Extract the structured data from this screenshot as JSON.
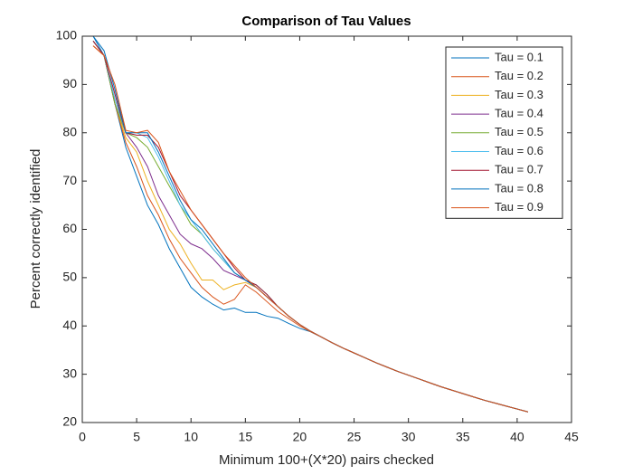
{
  "chart_data": {
    "type": "line",
    "title": "Comparison of Tau Values",
    "x_label": "Minimum 100+(X*20) pairs checked",
    "y_label": "Percent correctly identified",
    "x": [
      1,
      2,
      3,
      4,
      5,
      6,
      7,
      8,
      9,
      10,
      11,
      12,
      13,
      14,
      15,
      16,
      17,
      18,
      19,
      20,
      21,
      22,
      23,
      24,
      25,
      26,
      27,
      28,
      29,
      30,
      31,
      32,
      33,
      34,
      35,
      36,
      37,
      38,
      39,
      40,
      41
    ],
    "xlim": [
      0,
      45
    ],
    "xticks": [
      0,
      5,
      10,
      15,
      20,
      25,
      30,
      35,
      40,
      45
    ],
    "ylim": [
      20,
      100
    ],
    "yticks": [
      20,
      30,
      40,
      50,
      60,
      70,
      80,
      90,
      100
    ],
    "legend": "northeast",
    "grid": false,
    "series": [
      {
        "name": "Tau = 0.1",
        "color": "#0072BD",
        "values": [
          100,
          96,
          86,
          77,
          71,
          65,
          61,
          56,
          52,
          48,
          46,
          44.5,
          43.3,
          43.7,
          42.8,
          42.8,
          42,
          41.6,
          40.5,
          39.5,
          38.8,
          37.7,
          36.5,
          35.4,
          34.4,
          33.4,
          32.4,
          31.5,
          30.6,
          29.8,
          29,
          28.2,
          27.4,
          26.7,
          26,
          25.3,
          24.6,
          24,
          23.4,
          22.8,
          22.2
        ]
      },
      {
        "name": "Tau = 0.2",
        "color": "#D95319",
        "values": [
          98,
          96,
          86,
          78,
          73,
          67,
          63,
          58,
          54,
          51,
          48,
          46,
          44.5,
          45.5,
          48.5,
          47,
          45,
          43,
          41.5,
          40,
          38.8,
          37.7,
          36.5,
          35.4,
          34.4,
          33.4,
          32.4,
          31.5,
          30.6,
          29.8,
          29,
          28.2,
          27.4,
          26.7,
          26,
          25.3,
          24.6,
          24,
          23.4,
          22.8,
          22.2
        ]
      },
      {
        "name": "Tau = 0.3",
        "color": "#EDB120",
        "values": [
          99,
          96,
          86,
          79,
          76,
          70,
          65,
          60,
          57,
          53,
          49.5,
          49.5,
          47.5,
          48.5,
          49,
          48,
          46,
          44,
          42,
          40.3,
          38.9,
          37.7,
          36.5,
          35.4,
          34.4,
          33.4,
          32.4,
          31.5,
          30.6,
          29.8,
          29,
          28.2,
          27.4,
          26.7,
          26,
          25.3,
          24.6,
          24,
          23.4,
          22.8,
          22.2
        ]
      },
      {
        "name": "Tau = 0.4",
        "color": "#7E2F8E",
        "values": [
          99,
          96,
          86,
          80,
          77,
          73,
          67,
          63,
          59,
          57,
          56,
          54,
          51.5,
          50.5,
          49.5,
          48,
          46,
          44,
          42,
          40.3,
          38.9,
          37.7,
          36.5,
          35.4,
          34.4,
          33.4,
          32.4,
          31.5,
          30.6,
          29.8,
          29,
          28.2,
          27.4,
          26.7,
          26,
          25.3,
          24.6,
          24,
          23.4,
          22.8,
          22.2
        ]
      },
      {
        "name": "Tau = 0.5",
        "color": "#77AC30",
        "values": [
          99,
          96,
          86,
          80,
          79,
          77,
          73,
          69,
          65,
          61,
          59,
          56,
          53.5,
          51,
          49.5,
          48.5,
          46.5,
          44,
          42,
          40.3,
          38.9,
          37.7,
          36.5,
          35.4,
          34.4,
          33.4,
          32.4,
          31.5,
          30.6,
          29.8,
          29,
          28.2,
          27.4,
          26.7,
          26,
          25.3,
          24.6,
          24,
          23.4,
          22.8,
          22.2
        ]
      },
      {
        "name": "Tau = 0.6",
        "color": "#4DBEEE",
        "values": [
          99,
          96,
          87,
          80,
          80,
          79,
          75,
          70,
          65,
          62,
          59,
          56,
          53.5,
          51,
          49.5,
          48.5,
          46.5,
          44,
          42,
          40.3,
          38.9,
          37.7,
          36.5,
          35.4,
          34.4,
          33.4,
          32.4,
          31.5,
          30.6,
          29.8,
          29,
          28.2,
          27.4,
          26.7,
          26,
          25.3,
          24.6,
          24,
          23.4,
          22.8,
          22.2
        ]
      },
      {
        "name": "Tau = 0.7",
        "color": "#A2142F",
        "values": [
          99,
          96,
          88,
          80,
          79.5,
          79.5,
          77,
          72,
          67,
          64,
          61,
          58,
          55,
          52,
          49.5,
          48.5,
          46.5,
          44,
          42,
          40.3,
          38.9,
          37.7,
          36.5,
          35.4,
          34.4,
          33.4,
          32.4,
          31.5,
          30.6,
          29.8,
          29,
          28.2,
          27.4,
          26.7,
          26,
          25.3,
          24.6,
          24,
          23.4,
          22.8,
          22.2
        ]
      },
      {
        "name": "Tau = 0.8",
        "color": "#0072BD",
        "values": [
          100,
          97,
          89,
          80,
          80,
          80,
          76,
          71,
          66,
          62,
          60,
          57,
          54,
          51,
          49.5,
          48,
          46,
          44,
          42,
          40.3,
          38.9,
          37.7,
          36.5,
          35.4,
          34.4,
          33.4,
          32.4,
          31.5,
          30.6,
          29.8,
          29,
          28.2,
          27.4,
          26.7,
          26,
          25.3,
          24.6,
          24,
          23.4,
          22.8,
          22.2
        ]
      },
      {
        "name": "Tau = 0.9",
        "color": "#D95319",
        "values": [
          98,
          96,
          90,
          80.5,
          80,
          80.5,
          78,
          72,
          68,
          64,
          61,
          58,
          55,
          52.5,
          50,
          48,
          46,
          44,
          42,
          40.3,
          38.9,
          37.7,
          36.5,
          35.4,
          34.4,
          33.4,
          32.4,
          31.5,
          30.6,
          29.8,
          29,
          28.2,
          27.4,
          26.7,
          26,
          25.3,
          24.6,
          24,
          23.4,
          22.8,
          22.2
        ]
      }
    ]
  }
}
